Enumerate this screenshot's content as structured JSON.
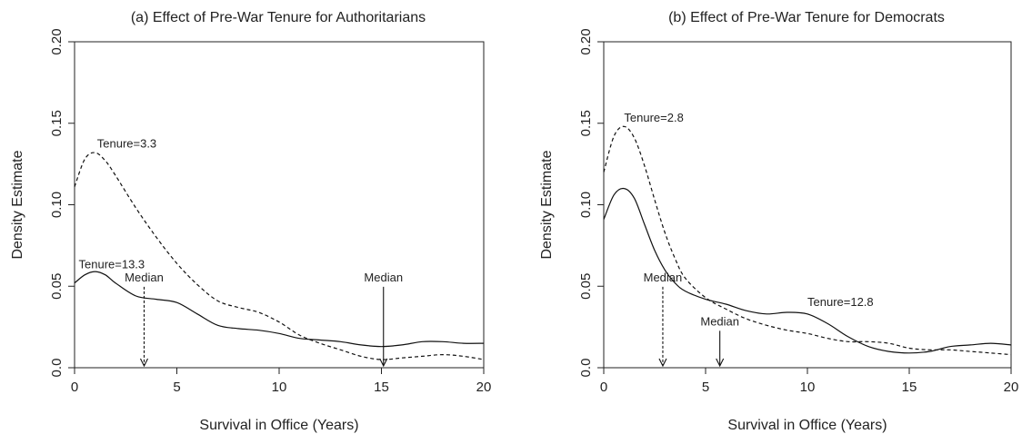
{
  "chart_data": [
    {
      "type": "line",
      "title": "(a) Effect of Pre-War Tenure for Authoritarians",
      "xlabel": "Survival in Office (Years)",
      "ylabel": "Density Estimate",
      "xlim": [
        0,
        20
      ],
      "ylim": [
        0,
        0.2
      ],
      "x_ticks": [
        "0",
        "5",
        "10",
        "15",
        "20"
      ],
      "y_ticks": [
        "0.0",
        "0.05",
        "0.10",
        "0.15",
        "0.20"
      ],
      "series": [
        {
          "name": "Tenure=3.3",
          "style": "dashed",
          "x": [
            0,
            0.5,
            1,
            1.5,
            2,
            3,
            4,
            5,
            6,
            7,
            8,
            9,
            10,
            11,
            12,
            13,
            14,
            15,
            16,
            17,
            18,
            19,
            20
          ],
          "y": [
            0.111,
            0.128,
            0.132,
            0.127,
            0.118,
            0.098,
            0.08,
            0.064,
            0.051,
            0.041,
            0.037,
            0.034,
            0.028,
            0.02,
            0.015,
            0.011,
            0.007,
            0.005,
            0.006,
            0.007,
            0.008,
            0.007,
            0.005
          ]
        },
        {
          "name": "Tenure=13.3",
          "style": "solid",
          "x": [
            0,
            0.5,
            1,
            1.5,
            2,
            3,
            4,
            5,
            6,
            7,
            8,
            9,
            10,
            11,
            12,
            13,
            14,
            15,
            16,
            17,
            18,
            19,
            20
          ],
          "y": [
            0.052,
            0.057,
            0.059,
            0.057,
            0.052,
            0.044,
            0.042,
            0.04,
            0.033,
            0.026,
            0.024,
            0.023,
            0.021,
            0.018,
            0.017,
            0.016,
            0.014,
            0.013,
            0.014,
            0.016,
            0.016,
            0.015,
            0.015
          ]
        }
      ],
      "annotations": [
        {
          "text": "Tenure=3.3",
          "x": 1.1,
          "y": 0.135
        },
        {
          "text": "Tenure=13.3",
          "x": 0.2,
          "y": 0.061
        },
        {
          "text": "Median",
          "x": 3.4,
          "y": 0.053,
          "arrow_to": [
            3.4,
            0.0
          ],
          "arrow_style": "dashed"
        },
        {
          "text": "Median",
          "x": 15.1,
          "y": 0.053,
          "arrow_to": [
            15.1,
            0.0
          ],
          "arrow_style": "solid"
        }
      ]
    },
    {
      "type": "line",
      "title": "(b) Effect of Pre-War Tenure for Democrats",
      "xlabel": "Survival in Office (Years)",
      "ylabel": "Density Estimate",
      "xlim": [
        0,
        20
      ],
      "ylim": [
        0,
        0.2
      ],
      "x_ticks": [
        "0",
        "5",
        "10",
        "15",
        "20"
      ],
      "y_ticks": [
        "0.0",
        "0.05",
        "0.10",
        "0.15",
        "0.20"
      ],
      "series": [
        {
          "name": "Tenure=2.8",
          "style": "dashed",
          "x": [
            0,
            0.5,
            1,
            1.5,
            2,
            2.5,
            3,
            3.5,
            4,
            5,
            6,
            7,
            8,
            9,
            10,
            11,
            12,
            13,
            14,
            15,
            16,
            17,
            18,
            19,
            20
          ],
          "y": [
            0.12,
            0.142,
            0.148,
            0.141,
            0.124,
            0.103,
            0.083,
            0.067,
            0.055,
            0.043,
            0.036,
            0.03,
            0.026,
            0.023,
            0.021,
            0.018,
            0.016,
            0.016,
            0.015,
            0.012,
            0.011,
            0.011,
            0.01,
            0.009,
            0.008
          ]
        },
        {
          "name": "Tenure=12.8",
          "style": "solid",
          "x": [
            0,
            0.5,
            1,
            1.5,
            2,
            2.5,
            3,
            3.5,
            4,
            5,
            6,
            7,
            8,
            9,
            10,
            11,
            12,
            13,
            14,
            15,
            16,
            17,
            18,
            19,
            20
          ],
          "y": [
            0.091,
            0.106,
            0.11,
            0.104,
            0.088,
            0.072,
            0.06,
            0.052,
            0.047,
            0.042,
            0.039,
            0.035,
            0.033,
            0.034,
            0.033,
            0.027,
            0.019,
            0.013,
            0.01,
            0.009,
            0.01,
            0.013,
            0.014,
            0.015,
            0.014
          ]
        }
      ],
      "annotations": [
        {
          "text": "Tenure=2.8",
          "x": 1.0,
          "y": 0.151
        },
        {
          "text": "Tenure=12.8",
          "x": 10.0,
          "y": 0.038
        },
        {
          "text": "Median",
          "x": 2.9,
          "y": 0.053,
          "arrow_to": [
            2.9,
            0.0
          ],
          "arrow_style": "dashed"
        },
        {
          "text": "Median",
          "x": 5.7,
          "y": 0.026,
          "arrow_to": [
            5.7,
            0.0
          ],
          "arrow_style": "solid"
        }
      ]
    }
  ]
}
